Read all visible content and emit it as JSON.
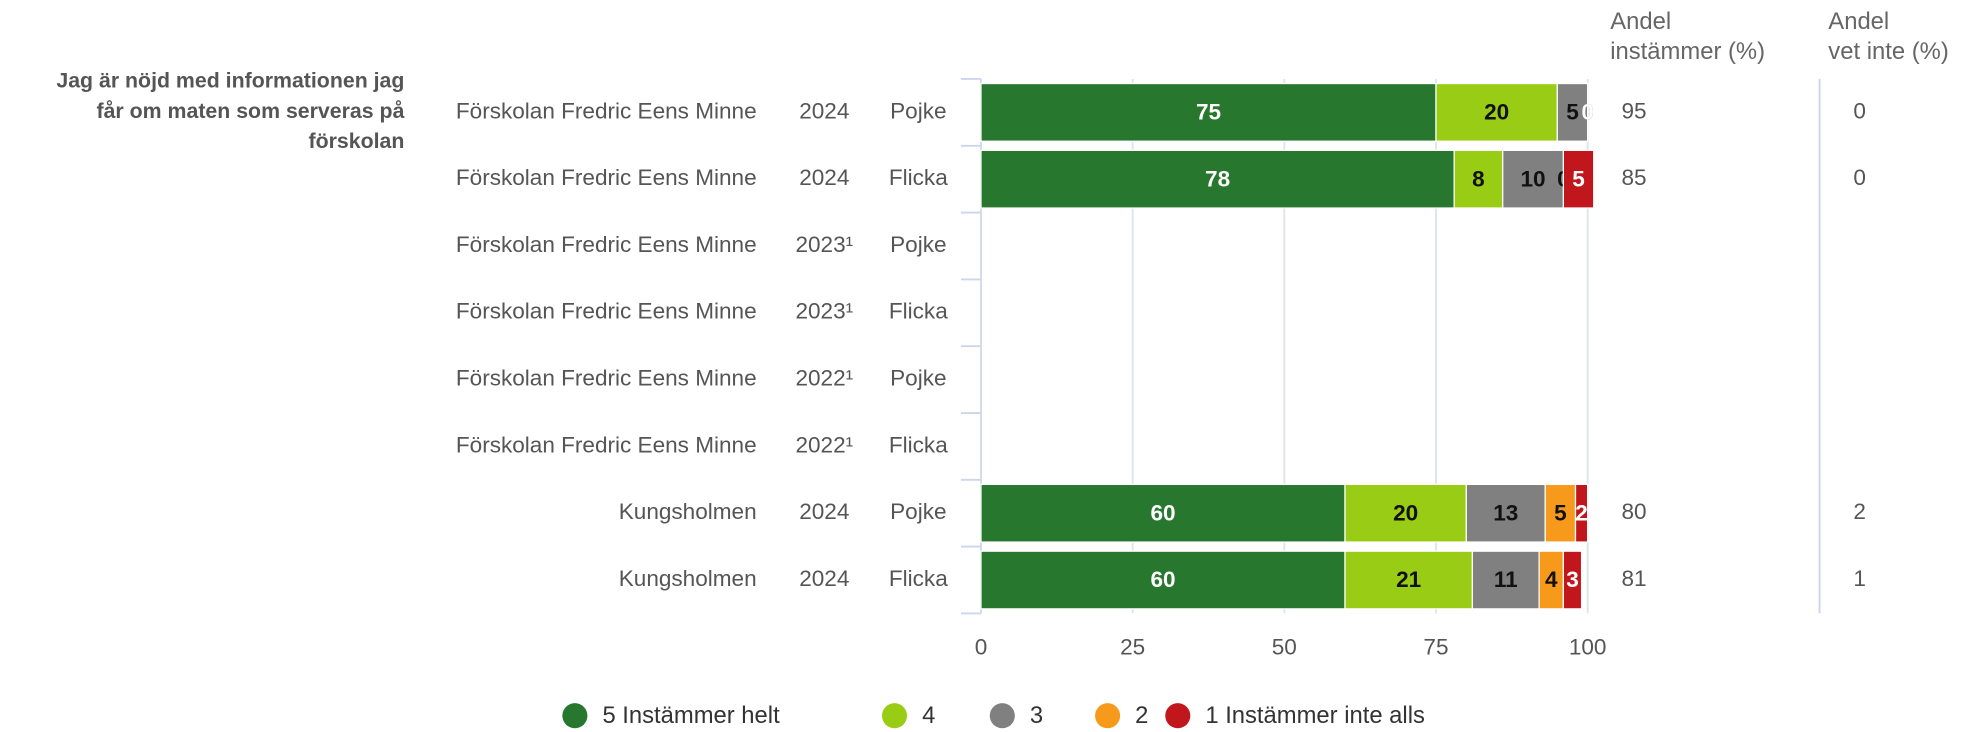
{
  "chart_data": {
    "type": "stacked_bar",
    "question": "Jag är nöjd med informationen jag\nfår om maten som serveras på\nförskolan",
    "categories": [
      [
        "Förskolan Fredric Eens Minne",
        "2024",
        "Pojke"
      ],
      [
        "Förskolan Fredric Eens Minne",
        "2024",
        "Flicka"
      ],
      [
        "Förskolan Fredric Eens Minne",
        "2023¹",
        "Pojke"
      ],
      [
        "Förskolan Fredric Eens Minne",
        "2023¹",
        "Flicka"
      ],
      [
        "Förskolan Fredric Eens Minne",
        "2022¹",
        "Pojke"
      ],
      [
        "Förskolan Fredric Eens Minne",
        "2022¹",
        "Flicka"
      ],
      [
        "Kungsholmen",
        "2024",
        "Pojke"
      ],
      [
        "Kungsholmen",
        "2024",
        "Flicka"
      ]
    ],
    "series": [
      {
        "name": "5 Instämmer helt",
        "color": "#27772f",
        "label_color": "#ffffff",
        "values": [
          75,
          78,
          null,
          null,
          null,
          null,
          60,
          60
        ]
      },
      {
        "name": "4",
        "color": "#99cc14",
        "label_color": "#111111",
        "values": [
          20,
          8,
          null,
          null,
          null,
          null,
          20,
          21
        ]
      },
      {
        "name": "3",
        "color": "#808080",
        "label_color": "#111111",
        "values": [
          5,
          10,
          null,
          null,
          null,
          null,
          13,
          11
        ]
      },
      {
        "name": "2",
        "color": "#f79a1b",
        "label_color": "#111111",
        "values": [
          0,
          0,
          null,
          null,
          null,
          null,
          5,
          4
        ]
      },
      {
        "name": "1 Instämmer inte alls",
        "color": "#c0161c",
        "label_color": "#ffffff",
        "values": [
          0,
          5,
          null,
          null,
          null,
          null,
          2,
          3
        ]
      }
    ],
    "columns": [
      {
        "header": "Andel\ninstämmer (%)",
        "values": [
          95,
          85,
          null,
          null,
          null,
          null,
          80,
          81
        ]
      },
      {
        "header": "Andel\nvet inte (%)",
        "values": [
          0,
          0,
          null,
          null,
          null,
          null,
          2,
          1
        ]
      }
    ],
    "xlim": [
      0,
      100
    ],
    "xticks": [
      0,
      25,
      50,
      75,
      100
    ],
    "grid": true
  }
}
